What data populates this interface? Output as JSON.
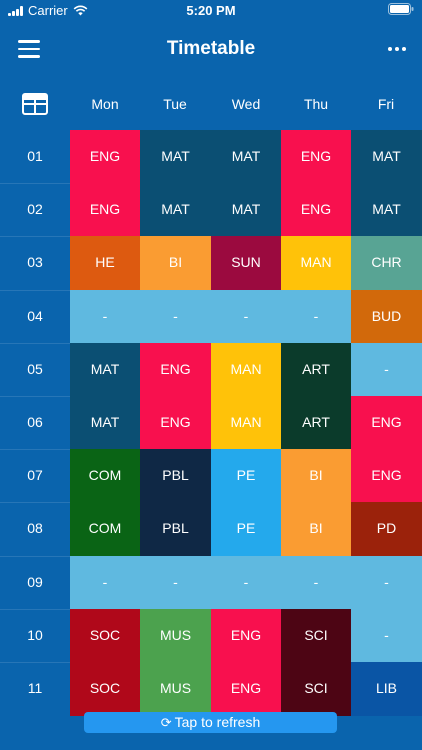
{
  "status": {
    "carrier": "Carrier",
    "time": "5:20 PM"
  },
  "nav": {
    "title": "Timetable",
    "menu_icon": "hamburger-menu-icon",
    "more_icon": "more-ellipsis-icon"
  },
  "days": [
    "Mon",
    "Tue",
    "Wed",
    "Thu",
    "Fri"
  ],
  "periods": [
    "01",
    "02",
    "03",
    "04",
    "05",
    "06",
    "07",
    "08",
    "09",
    "10",
    "11"
  ],
  "colors": {
    "ENG": "#f8104e",
    "MAT": "#0b4f73",
    "HE": "#dd5a10",
    "BI": "#fa9c32",
    "SUN": "#9b0a3f",
    "MAN": "#ffc209",
    "CHR": "#58a494",
    "BUD": "#d2690b",
    "FREE": "#5fb9e0",
    "ART": "#0b3b2b",
    "COM": "#0a6415",
    "PBL": "#0f2845",
    "PE": "#24a9ec",
    "PD": "#9b220b",
    "SOC": "#b0081a",
    "MUS": "#4ca24e",
    "SCI": "#4d0514",
    "LIB": "#0a55a5"
  },
  "grid": [
    [
      {
        "label": "ENG",
        "key": "ENG"
      },
      {
        "label": "MAT",
        "key": "MAT"
      },
      {
        "label": "MAT",
        "key": "MAT"
      },
      {
        "label": "ENG",
        "key": "ENG"
      },
      {
        "label": "MAT",
        "key": "MAT"
      }
    ],
    [
      {
        "label": "ENG",
        "key": "ENG"
      },
      {
        "label": "MAT",
        "key": "MAT"
      },
      {
        "label": "MAT",
        "key": "MAT"
      },
      {
        "label": "ENG",
        "key": "ENG"
      },
      {
        "label": "MAT",
        "key": "MAT"
      }
    ],
    [
      {
        "label": "HE",
        "key": "HE"
      },
      {
        "label": "BI",
        "key": "BI"
      },
      {
        "label": "SUN",
        "key": "SUN"
      },
      {
        "label": "MAN",
        "key": "MAN"
      },
      {
        "label": "CHR",
        "key": "CHR"
      }
    ],
    [
      {
        "label": "-",
        "key": "FREE"
      },
      {
        "label": "-",
        "key": "FREE"
      },
      {
        "label": "-",
        "key": "FREE"
      },
      {
        "label": "-",
        "key": "FREE"
      },
      {
        "label": "BUD",
        "key": "BUD"
      }
    ],
    [
      {
        "label": "MAT",
        "key": "MAT"
      },
      {
        "label": "ENG",
        "key": "ENG"
      },
      {
        "label": "MAN",
        "key": "MAN"
      },
      {
        "label": "ART",
        "key": "ART"
      },
      {
        "label": "-",
        "key": "FREE"
      }
    ],
    [
      {
        "label": "MAT",
        "key": "MAT"
      },
      {
        "label": "ENG",
        "key": "ENG"
      },
      {
        "label": "MAN",
        "key": "MAN"
      },
      {
        "label": "ART",
        "key": "ART"
      },
      {
        "label": "ENG",
        "key": "ENG"
      }
    ],
    [
      {
        "label": "COM",
        "key": "COM"
      },
      {
        "label": "PBL",
        "key": "PBL"
      },
      {
        "label": "PE",
        "key": "PE"
      },
      {
        "label": "BI",
        "key": "BI"
      },
      {
        "label": "ENG",
        "key": "ENG"
      }
    ],
    [
      {
        "label": "COM",
        "key": "COM"
      },
      {
        "label": "PBL",
        "key": "PBL"
      },
      {
        "label": "PE",
        "key": "PE"
      },
      {
        "label": "BI",
        "key": "BI"
      },
      {
        "label": "PD",
        "key": "PD"
      }
    ],
    [
      {
        "label": "-",
        "key": "FREE"
      },
      {
        "label": "-",
        "key": "FREE"
      },
      {
        "label": "-",
        "key": "FREE"
      },
      {
        "label": "-",
        "key": "FREE"
      },
      {
        "label": "-",
        "key": "FREE"
      }
    ],
    [
      {
        "label": "SOC",
        "key": "SOC"
      },
      {
        "label": "MUS",
        "key": "MUS"
      },
      {
        "label": "ENG",
        "key": "ENG"
      },
      {
        "label": "SCI",
        "key": "SCI"
      },
      {
        "label": "-",
        "key": "FREE"
      }
    ],
    [
      {
        "label": "SOC",
        "key": "SOC"
      },
      {
        "label": "MUS",
        "key": "MUS"
      },
      {
        "label": "ENG",
        "key": "ENG"
      },
      {
        "label": "SCI",
        "key": "SCI"
      },
      {
        "label": "LIB",
        "key": "LIB"
      }
    ]
  ],
  "refresh": {
    "label": "Tap to refresh",
    "icon": "refresh-icon"
  }
}
